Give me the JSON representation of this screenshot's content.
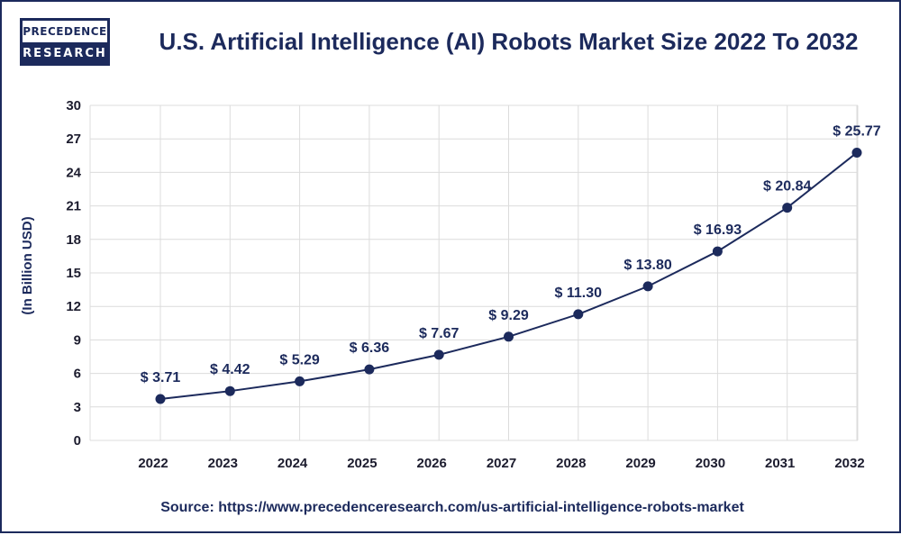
{
  "logo": {
    "line1": "PRECEDENCE",
    "line2": "RESEARCH"
  },
  "title": "U.S. Artificial Intelligence (AI) Robots Market Size 2022 To 2032",
  "source": "Source: https://www.precedenceresearch.com/us-artificial-intelligence-robots-market",
  "colors": {
    "brand": "#1c2a5c",
    "line": "#1c2a5c",
    "grid": "#dcdcdc"
  },
  "chart_data": {
    "type": "line",
    "title": "U.S. Artificial Intelligence (AI) Robots Market Size 2022 To 2032",
    "xlabel": "",
    "ylabel": "(In Billion USD)",
    "ylim": [
      0,
      30
    ],
    "yticks": [
      0,
      3,
      6,
      9,
      12,
      15,
      18,
      21,
      24,
      27,
      30
    ],
    "grid": true,
    "categories": [
      "2022",
      "2023",
      "2024",
      "2025",
      "2026",
      "2027",
      "2028",
      "2029",
      "2030",
      "2031",
      "2032"
    ],
    "series": [
      {
        "values": [
          3.71,
          4.42,
          5.29,
          6.36,
          7.67,
          9.29,
          11.3,
          13.8,
          16.93,
          20.84,
          25.77
        ],
        "labels": [
          "$ 3.71",
          "$ 4.42",
          "$ 5.29",
          "$ 6.36",
          "$ 7.67",
          "$ 9.29",
          "$ 11.30",
          "$ 13.80",
          "$ 16.93",
          "$ 20.84",
          "$ 25.77"
        ]
      }
    ]
  }
}
